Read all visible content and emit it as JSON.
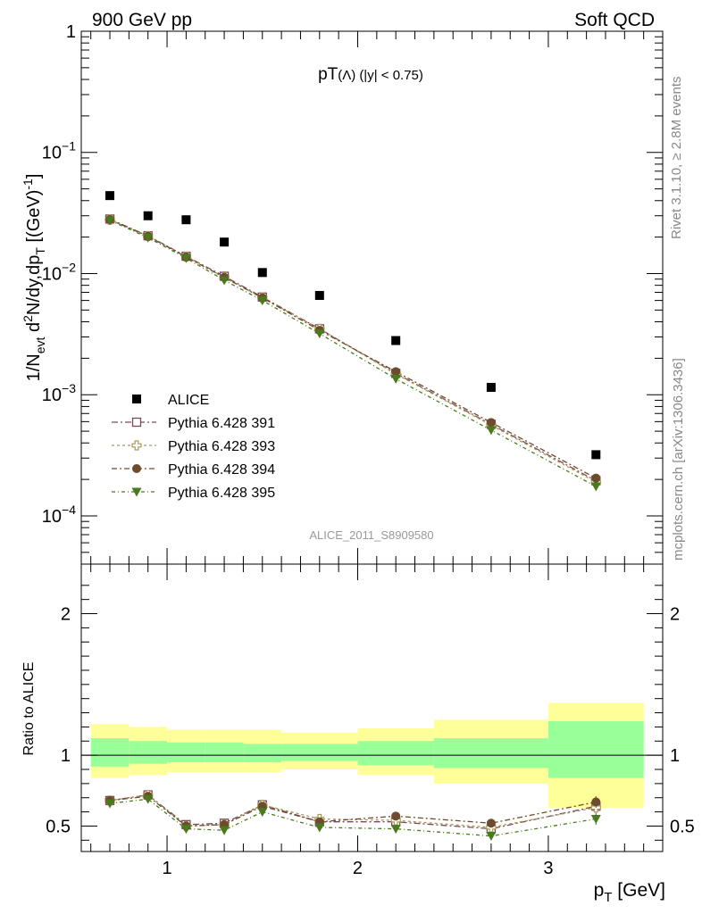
{
  "header": {
    "left": "900 GeV pp",
    "right": "Soft QCD"
  },
  "side_labels": {
    "rivet": "Rivet 3.1.10, ≥ 2.8M events",
    "mcplots": "mcplots.cern.ch [arXiv:1306.3436]"
  },
  "chart_data": [
    {
      "type": "scatter",
      "title_main": "pT",
      "title_particle": "(Λ)",
      "title_cut": "(|y| < 0.75)",
      "ylabel": "1/N_evt d²N/dy,dp_T [(GeV)⁻¹]",
      "ylabel_parts": {
        "a": "1/N",
        "b": "evt",
        "c": " d",
        "d": "2",
        "e": "N/dy,dp",
        "f": "T",
        "g": " [(GeV)",
        "h": "-1",
        "i": "]"
      },
      "y_scale": "log",
      "ylim": [
        4e-05,
        1
      ],
      "y_ticks": [
        {
          "v": 1,
          "base": "1",
          "exp": ""
        },
        {
          "v": 0.1,
          "base": "10",
          "exp": "−1"
        },
        {
          "v": 0.01,
          "base": "10",
          "exp": "−2"
        },
        {
          "v": 0.001,
          "base": "10",
          "exp": "−3"
        },
        {
          "v": 0.0001,
          "base": "10",
          "exp": "−4"
        }
      ],
      "analysis_label": "ALICE_2011_S8909580",
      "legend_position": "lower-left",
      "x": [
        0.7,
        0.9,
        1.1,
        1.3,
        1.5,
        1.8,
        2.2,
        2.7,
        3.25
      ],
      "series": [
        {
          "name": "ALICE",
          "marker": "filled-square",
          "color": "#000000",
          "values": [
            0.044,
            0.03,
            0.0278,
            0.0182,
            0.0102,
            0.0066,
            0.0028,
            0.00115,
            0.00032
          ]
        },
        {
          "name": "Pythia 6.428 391",
          "marker": "open-square",
          "color": "#7a4a5c",
          "values": [
            0.0282,
            0.0205,
            0.0139,
            0.0095,
            0.0064,
            0.0035,
            0.0015,
            0.00057,
            0.000195
          ]
        },
        {
          "name": "Pythia 6.428 393",
          "marker": "open-cross",
          "color": "#a89a52",
          "values": [
            0.0278,
            0.0204,
            0.0138,
            0.0093,
            0.0063,
            0.0035,
            0.00148,
            0.00056,
            0.00019
          ]
        },
        {
          "name": "Pythia 6.428 394",
          "marker": "filled-circle",
          "color": "#6e4a2e",
          "values": [
            0.0279,
            0.0203,
            0.0137,
            0.0093,
            0.0063,
            0.0034,
            0.00155,
            0.00059,
            0.000205
          ]
        },
        {
          "name": "Pythia 6.428 395",
          "marker": "filled-triangle-down",
          "color": "#4a7a1e",
          "values": [
            0.0275,
            0.0198,
            0.0134,
            0.0088,
            0.006,
            0.0032,
            0.00135,
            0.00051,
            0.000175
          ]
        }
      ]
    },
    {
      "type": "line",
      "ylabel": "Ratio to ALICE",
      "xlabel": "p_T [GeV]",
      "xlabel_parts": {
        "a": "p",
        "b": "T",
        "c": " [GeV]"
      },
      "xlim": [
        0.55,
        3.6
      ],
      "ylim": [
        0.32,
        2.35
      ],
      "x_ticks": [
        "1",
        "2",
        "3"
      ],
      "y_ticks": [
        "0.5",
        "1",
        "2"
      ],
      "reference_line": 1,
      "bins": [
        {
          "lo": 0.6,
          "hi": 0.8,
          "band_inner": [
            0.92,
            1.12
          ],
          "band_outer": [
            0.84,
            1.22
          ]
        },
        {
          "lo": 0.8,
          "hi": 1.0,
          "band_inner": [
            0.94,
            1.1
          ],
          "band_outer": [
            0.86,
            1.2
          ]
        },
        {
          "lo": 1.0,
          "hi": 1.2,
          "band_inner": [
            0.95,
            1.09
          ],
          "band_outer": [
            0.88,
            1.18
          ]
        },
        {
          "lo": 1.2,
          "hi": 1.4,
          "band_inner": [
            0.95,
            1.09
          ],
          "band_outer": [
            0.88,
            1.18
          ]
        },
        {
          "lo": 1.4,
          "hi": 1.6,
          "band_inner": [
            0.95,
            1.08
          ],
          "band_outer": [
            0.88,
            1.18
          ]
        },
        {
          "lo": 1.6,
          "hi": 2.0,
          "band_inner": [
            0.96,
            1.08
          ],
          "band_outer": [
            0.9,
            1.16
          ]
        },
        {
          "lo": 2.0,
          "hi": 2.4,
          "band_inner": [
            0.93,
            1.1
          ],
          "band_outer": [
            0.86,
            1.19
          ]
        },
        {
          "lo": 2.4,
          "hi": 3.0,
          "band_inner": [
            0.91,
            1.12
          ],
          "band_outer": [
            0.8,
            1.25
          ]
        },
        {
          "lo": 3.0,
          "hi": 3.5,
          "band_inner": [
            0.84,
            1.24
          ],
          "band_outer": [
            0.63,
            1.37
          ]
        }
      ],
      "x": [
        0.7,
        0.9,
        1.1,
        1.3,
        1.5,
        1.8,
        2.2,
        2.7,
        3.25
      ],
      "series": [
        {
          "name": "Pythia 6.428 391",
          "marker": "open-square",
          "color": "#7a4a5c",
          "values": [
            0.68,
            0.72,
            0.51,
            0.52,
            0.65,
            0.53,
            0.53,
            0.48,
            0.64
          ],
          "errors": [
            0.01,
            0.01,
            0.01,
            0.01,
            0.01,
            0.015,
            0.015,
            0.02,
            0.04
          ]
        },
        {
          "name": "Pythia 6.428 393",
          "marker": "open-cross",
          "color": "#a89a52",
          "values": [
            0.68,
            0.72,
            0.5,
            0.51,
            0.65,
            0.55,
            0.54,
            0.49,
            0.63
          ],
          "errors": [
            0.01,
            0.01,
            0.01,
            0.01,
            0.01,
            0.015,
            0.015,
            0.02,
            0.04
          ]
        },
        {
          "name": "Pythia 6.428 394",
          "marker": "filled-circle",
          "color": "#6e4a2e",
          "values": [
            0.68,
            0.71,
            0.5,
            0.51,
            0.64,
            0.53,
            0.57,
            0.52,
            0.67
          ],
          "errors": [
            0.01,
            0.01,
            0.01,
            0.01,
            0.01,
            0.015,
            0.015,
            0.02,
            0.04
          ]
        },
        {
          "name": "Pythia 6.428 395",
          "marker": "filled-triangle-down",
          "color": "#4a7a1e",
          "values": [
            0.66,
            0.69,
            0.48,
            0.47,
            0.6,
            0.49,
            0.48,
            0.43,
            0.55
          ],
          "errors": [
            0.01,
            0.01,
            0.01,
            0.01,
            0.01,
            0.015,
            0.015,
            0.02,
            0.04
          ]
        }
      ]
    }
  ],
  "colors": {
    "band_outer": "#ffff99",
    "band_inner": "#99ff99"
  }
}
